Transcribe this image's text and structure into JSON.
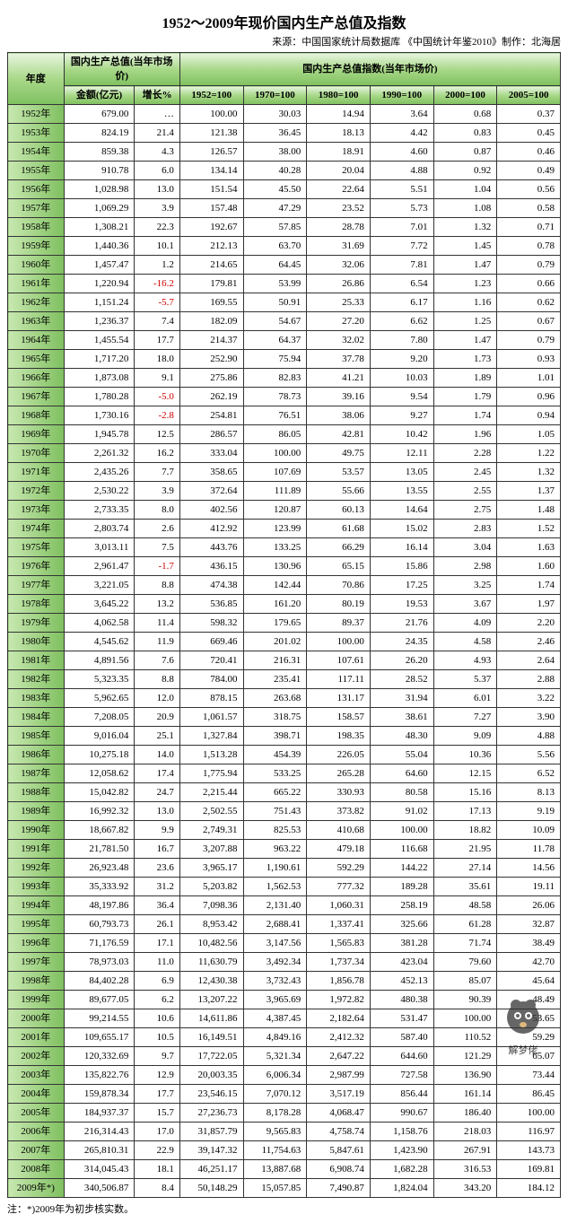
{
  "title": "1952～2009年现价国内生产总值及指数",
  "source": "来源：中国国家统计局数据库 《中国统计年鉴2010》制作：北海居",
  "footnote": "注：*)2009年为初步核实数。",
  "headers": {
    "year": "年度",
    "gdp_group": "国内生产总值(当年市场价)",
    "index_group": "国内生产总值指数(当年市场价)",
    "amount": "金额(亿元)",
    "growth": "增长%",
    "i1952": "1952=100",
    "i1970": "1970=100",
    "i1980": "1980=100",
    "i1990": "1990=100",
    "i2000": "2000=100",
    "i2005": "2005=100"
  },
  "col_widths": [
    "62",
    "78",
    "50",
    "70",
    "70",
    "70",
    "70",
    "70",
    "70"
  ],
  "rows": [
    {
      "year": "1952年",
      "amount": "679.00",
      "growth": "…",
      "i1": "100.00",
      "i2": "30.03",
      "i3": "14.94",
      "i4": "3.64",
      "i5": "0.68",
      "i6": "0.37"
    },
    {
      "year": "1953年",
      "amount": "824.19",
      "growth": "21.4",
      "i1": "121.38",
      "i2": "36.45",
      "i3": "18.13",
      "i4": "4.42",
      "i5": "0.83",
      "i6": "0.45"
    },
    {
      "year": "1954年",
      "amount": "859.38",
      "growth": "4.3",
      "i1": "126.57",
      "i2": "38.00",
      "i3": "18.91",
      "i4": "4.60",
      "i5": "0.87",
      "i6": "0.46"
    },
    {
      "year": "1955年",
      "amount": "910.78",
      "growth": "6.0",
      "i1": "134.14",
      "i2": "40.28",
      "i3": "20.04",
      "i4": "4.88",
      "i5": "0.92",
      "i6": "0.49"
    },
    {
      "year": "1956年",
      "amount": "1,028.98",
      "growth": "13.0",
      "i1": "151.54",
      "i2": "45.50",
      "i3": "22.64",
      "i4": "5.51",
      "i5": "1.04",
      "i6": "0.56"
    },
    {
      "year": "1957年",
      "amount": "1,069.29",
      "growth": "3.9",
      "i1": "157.48",
      "i2": "47.29",
      "i3": "23.52",
      "i4": "5.73",
      "i5": "1.08",
      "i6": "0.58"
    },
    {
      "year": "1958年",
      "amount": "1,308.21",
      "growth": "22.3",
      "i1": "192.67",
      "i2": "57.85",
      "i3": "28.78",
      "i4": "7.01",
      "i5": "1.32",
      "i6": "0.71"
    },
    {
      "year": "1959年",
      "amount": "1,440.36",
      "growth": "10.1",
      "i1": "212.13",
      "i2": "63.70",
      "i3": "31.69",
      "i4": "7.72",
      "i5": "1.45",
      "i6": "0.78"
    },
    {
      "year": "1960年",
      "amount": "1,457.47",
      "growth": "1.2",
      "i1": "214.65",
      "i2": "64.45",
      "i3": "32.06",
      "i4": "7.81",
      "i5": "1.47",
      "i6": "0.79"
    },
    {
      "year": "1961年",
      "amount": "1,220.94",
      "growth": "-16.2",
      "neg": true,
      "i1": "179.81",
      "i2": "53.99",
      "i3": "26.86",
      "i4": "6.54",
      "i5": "1.23",
      "i6": "0.66"
    },
    {
      "year": "1962年",
      "amount": "1,151.24",
      "growth": "-5.7",
      "neg": true,
      "i1": "169.55",
      "i2": "50.91",
      "i3": "25.33",
      "i4": "6.17",
      "i5": "1.16",
      "i6": "0.62"
    },
    {
      "year": "1963年",
      "amount": "1,236.37",
      "growth": "7.4",
      "i1": "182.09",
      "i2": "54.67",
      "i3": "27.20",
      "i4": "6.62",
      "i5": "1.25",
      "i6": "0.67"
    },
    {
      "year": "1964年",
      "amount": "1,455.54",
      "growth": "17.7",
      "i1": "214.37",
      "i2": "64.37",
      "i3": "32.02",
      "i4": "7.80",
      "i5": "1.47",
      "i6": "0.79"
    },
    {
      "year": "1965年",
      "amount": "1,717.20",
      "growth": "18.0",
      "i1": "252.90",
      "i2": "75.94",
      "i3": "37.78",
      "i4": "9.20",
      "i5": "1.73",
      "i6": "0.93"
    },
    {
      "year": "1966年",
      "amount": "1,873.08",
      "growth": "9.1",
      "i1": "275.86",
      "i2": "82.83",
      "i3": "41.21",
      "i4": "10.03",
      "i5": "1.89",
      "i6": "1.01"
    },
    {
      "year": "1967年",
      "amount": "1,780.28",
      "growth": "-5.0",
      "neg": true,
      "i1": "262.19",
      "i2": "78.73",
      "i3": "39.16",
      "i4": "9.54",
      "i5": "1.79",
      "i6": "0.96"
    },
    {
      "year": "1968年",
      "amount": "1,730.16",
      "growth": "-2.8",
      "neg": true,
      "i1": "254.81",
      "i2": "76.51",
      "i3": "38.06",
      "i4": "9.27",
      "i5": "1.74",
      "i6": "0.94"
    },
    {
      "year": "1969年",
      "amount": "1,945.78",
      "growth": "12.5",
      "i1": "286.57",
      "i2": "86.05",
      "i3": "42.81",
      "i4": "10.42",
      "i5": "1.96",
      "i6": "1.05"
    },
    {
      "year": "1970年",
      "amount": "2,261.32",
      "growth": "16.2",
      "i1": "333.04",
      "i2": "100.00",
      "i3": "49.75",
      "i4": "12.11",
      "i5": "2.28",
      "i6": "1.22"
    },
    {
      "year": "1971年",
      "amount": "2,435.26",
      "growth": "7.7",
      "i1": "358.65",
      "i2": "107.69",
      "i3": "53.57",
      "i4": "13.05",
      "i5": "2.45",
      "i6": "1.32"
    },
    {
      "year": "1972年",
      "amount": "2,530.22",
      "growth": "3.9",
      "i1": "372.64",
      "i2": "111.89",
      "i3": "55.66",
      "i4": "13.55",
      "i5": "2.55",
      "i6": "1.37"
    },
    {
      "year": "1973年",
      "amount": "2,733.35",
      "growth": "8.0",
      "i1": "402.56",
      "i2": "120.87",
      "i3": "60.13",
      "i4": "14.64",
      "i5": "2.75",
      "i6": "1.48"
    },
    {
      "year": "1974年",
      "amount": "2,803.74",
      "growth": "2.6",
      "i1": "412.92",
      "i2": "123.99",
      "i3": "61.68",
      "i4": "15.02",
      "i5": "2.83",
      "i6": "1.52"
    },
    {
      "year": "1975年",
      "amount": "3,013.11",
      "growth": "7.5",
      "i1": "443.76",
      "i2": "133.25",
      "i3": "66.29",
      "i4": "16.14",
      "i5": "3.04",
      "i6": "1.63"
    },
    {
      "year": "1976年",
      "amount": "2,961.47",
      "growth": "-1.7",
      "neg": true,
      "i1": "436.15",
      "i2": "130.96",
      "i3": "65.15",
      "i4": "15.86",
      "i5": "2.98",
      "i6": "1.60"
    },
    {
      "year": "1977年",
      "amount": "3,221.05",
      "growth": "8.8",
      "i1": "474.38",
      "i2": "142.44",
      "i3": "70.86",
      "i4": "17.25",
      "i5": "3.25",
      "i6": "1.74"
    },
    {
      "year": "1978年",
      "amount": "3,645.22",
      "growth": "13.2",
      "i1": "536.85",
      "i2": "161.20",
      "i3": "80.19",
      "i4": "19.53",
      "i5": "3.67",
      "i6": "1.97"
    },
    {
      "year": "1979年",
      "amount": "4,062.58",
      "growth": "11.4",
      "i1": "598.32",
      "i2": "179.65",
      "i3": "89.37",
      "i4": "21.76",
      "i5": "4.09",
      "i6": "2.20"
    },
    {
      "year": "1980年",
      "amount": "4,545.62",
      "growth": "11.9",
      "i1": "669.46",
      "i2": "201.02",
      "i3": "100.00",
      "i4": "24.35",
      "i5": "4.58",
      "i6": "2.46"
    },
    {
      "year": "1981年",
      "amount": "4,891.56",
      "growth": "7.6",
      "i1": "720.41",
      "i2": "216.31",
      "i3": "107.61",
      "i4": "26.20",
      "i5": "4.93",
      "i6": "2.64"
    },
    {
      "year": "1982年",
      "amount": "5,323.35",
      "growth": "8.8",
      "i1": "784.00",
      "i2": "235.41",
      "i3": "117.11",
      "i4": "28.52",
      "i5": "5.37",
      "i6": "2.88"
    },
    {
      "year": "1983年",
      "amount": "5,962.65",
      "growth": "12.0",
      "i1": "878.15",
      "i2": "263.68",
      "i3": "131.17",
      "i4": "31.94",
      "i5": "6.01",
      "i6": "3.22"
    },
    {
      "year": "1984年",
      "amount": "7,208.05",
      "growth": "20.9",
      "i1": "1,061.57",
      "i2": "318.75",
      "i3": "158.57",
      "i4": "38.61",
      "i5": "7.27",
      "i6": "3.90"
    },
    {
      "year": "1985年",
      "amount": "9,016.04",
      "growth": "25.1",
      "i1": "1,327.84",
      "i2": "398.71",
      "i3": "198.35",
      "i4": "48.30",
      "i5": "9.09",
      "i6": "4.88"
    },
    {
      "year": "1986年",
      "amount": "10,275.18",
      "growth": "14.0",
      "i1": "1,513.28",
      "i2": "454.39",
      "i3": "226.05",
      "i4": "55.04",
      "i5": "10.36",
      "i6": "5.56"
    },
    {
      "year": "1987年",
      "amount": "12,058.62",
      "growth": "17.4",
      "i1": "1,775.94",
      "i2": "533.25",
      "i3": "265.28",
      "i4": "64.60",
      "i5": "12.15",
      "i6": "6.52"
    },
    {
      "year": "1988年",
      "amount": "15,042.82",
      "growth": "24.7",
      "i1": "2,215.44",
      "i2": "665.22",
      "i3": "330.93",
      "i4": "80.58",
      "i5": "15.16",
      "i6": "8.13"
    },
    {
      "year": "1989年",
      "amount": "16,992.32",
      "growth": "13.0",
      "i1": "2,502.55",
      "i2": "751.43",
      "i3": "373.82",
      "i4": "91.02",
      "i5": "17.13",
      "i6": "9.19"
    },
    {
      "year": "1990年",
      "amount": "18,667.82",
      "growth": "9.9",
      "i1": "2,749.31",
      "i2": "825.53",
      "i3": "410.68",
      "i4": "100.00",
      "i5": "18.82",
      "i6": "10.09"
    },
    {
      "year": "1991年",
      "amount": "21,781.50",
      "growth": "16.7",
      "i1": "3,207.88",
      "i2": "963.22",
      "i3": "479.18",
      "i4": "116.68",
      "i5": "21.95",
      "i6": "11.78"
    },
    {
      "year": "1992年",
      "amount": "26,923.48",
      "growth": "23.6",
      "i1": "3,965.17",
      "i2": "1,190.61",
      "i3": "592.29",
      "i4": "144.22",
      "i5": "27.14",
      "i6": "14.56"
    },
    {
      "year": "1993年",
      "amount": "35,333.92",
      "growth": "31.2",
      "i1": "5,203.82",
      "i2": "1,562.53",
      "i3": "777.32",
      "i4": "189.28",
      "i5": "35.61",
      "i6": "19.11"
    },
    {
      "year": "1994年",
      "amount": "48,197.86",
      "growth": "36.4",
      "i1": "7,098.36",
      "i2": "2,131.40",
      "i3": "1,060.31",
      "i4": "258.19",
      "i5": "48.58",
      "i6": "26.06"
    },
    {
      "year": "1995年",
      "amount": "60,793.73",
      "growth": "26.1",
      "i1": "8,953.42",
      "i2": "2,688.41",
      "i3": "1,337.41",
      "i4": "325.66",
      "i5": "61.28",
      "i6": "32.87"
    },
    {
      "year": "1996年",
      "amount": "71,176.59",
      "growth": "17.1",
      "i1": "10,482.56",
      "i2": "3,147.56",
      "i3": "1,565.83",
      "i4": "381.28",
      "i5": "71.74",
      "i6": "38.49"
    },
    {
      "year": "1997年",
      "amount": "78,973.03",
      "growth": "11.0",
      "i1": "11,630.79",
      "i2": "3,492.34",
      "i3": "1,737.34",
      "i4": "423.04",
      "i5": "79.60",
      "i6": "42.70"
    },
    {
      "year": "1998年",
      "amount": "84,402.28",
      "growth": "6.9",
      "i1": "12,430.38",
      "i2": "3,732.43",
      "i3": "1,856.78",
      "i4": "452.13",
      "i5": "85.07",
      "i6": "45.64"
    },
    {
      "year": "1999年",
      "amount": "89,677.05",
      "growth": "6.2",
      "i1": "13,207.22",
      "i2": "3,965.69",
      "i3": "1,972.82",
      "i4": "480.38",
      "i5": "90.39",
      "i6": "48.49"
    },
    {
      "year": "2000年",
      "amount": "99,214.55",
      "growth": "10.6",
      "i1": "14,611.86",
      "i2": "4,387.45",
      "i3": "2,182.64",
      "i4": "531.47",
      "i5": "100.00",
      "i6": "53.65"
    },
    {
      "year": "2001年",
      "amount": "109,655.17",
      "growth": "10.5",
      "i1": "16,149.51",
      "i2": "4,849.16",
      "i3": "2,412.32",
      "i4": "587.40",
      "i5": "110.52",
      "i6": "59.29"
    },
    {
      "year": "2002年",
      "amount": "120,332.69",
      "growth": "9.7",
      "i1": "17,722.05",
      "i2": "5,321.34",
      "i3": "2,647.22",
      "i4": "644.60",
      "i5": "121.29",
      "i6": "65.07"
    },
    {
      "year": "2003年",
      "amount": "135,822.76",
      "growth": "12.9",
      "i1": "20,003.35",
      "i2": "6,006.34",
      "i3": "2,987.99",
      "i4": "727.58",
      "i5": "136.90",
      "i6": "73.44"
    },
    {
      "year": "2004年",
      "amount": "159,878.34",
      "growth": "17.7",
      "i1": "23,546.15",
      "i2": "7,070.12",
      "i3": "3,517.19",
      "i4": "856.44",
      "i5": "161.14",
      "i6": "86.45"
    },
    {
      "year": "2005年",
      "amount": "184,937.37",
      "growth": "15.7",
      "i1": "27,236.73",
      "i2": "8,178.28",
      "i3": "4,068.47",
      "i4": "990.67",
      "i5": "186.40",
      "i6": "100.00"
    },
    {
      "year": "2006年",
      "amount": "216,314.43",
      "growth": "17.0",
      "i1": "31,857.79",
      "i2": "9,565.83",
      "i3": "4,758.74",
      "i4": "1,158.76",
      "i5": "218.03",
      "i6": "116.97"
    },
    {
      "year": "2007年",
      "amount": "265,810.31",
      "growth": "22.9",
      "i1": "39,147.32",
      "i2": "11,754.63",
      "i3": "5,847.61",
      "i4": "1,423.90",
      "i5": "267.91",
      "i6": "143.73"
    },
    {
      "year": "2008年",
      "amount": "314,045.43",
      "growth": "18.1",
      "i1": "46,251.17",
      "i2": "13,887.68",
      "i3": "6,908.74",
      "i4": "1,682.28",
      "i5": "316.53",
      "i6": "169.81"
    },
    {
      "year": "2009年*)",
      "amount": "340,506.87",
      "growth": "8.4",
      "i1": "50,148.29",
      "i2": "15,057.85",
      "i3": "7,490.87",
      "i4": "1,824.04",
      "i5": "343.20",
      "i6": "184.12"
    }
  ],
  "watermark_text": "解梦佬"
}
